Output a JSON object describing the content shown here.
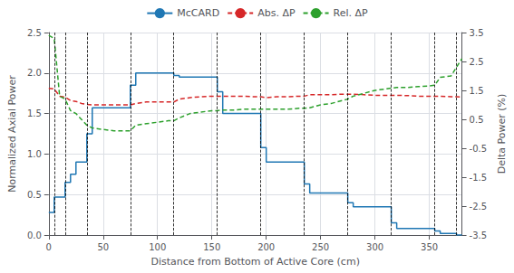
{
  "chart_data": {
    "type": "line",
    "xlabel": "Distance from Bottom of Active Core (cm)",
    "ylabel": "Normalized Axial Power",
    "y2label": "Delta Power (%)",
    "xlim": [
      0,
      380
    ],
    "xticks": [
      0,
      50,
      100,
      150,
      200,
      250,
      300,
      350
    ],
    "ylim": [
      0.0,
      2.5
    ],
    "yticks": [
      {
        "value": 0.0,
        "label": "0.0"
      },
      0.5,
      {
        "value": 1.0,
        "label": "1.0"
      },
      1.5,
      {
        "value": 2.0,
        "label": "2.0"
      },
      2.5
    ],
    "y2lim": [
      -3.5,
      3.5
    ],
    "y2ticks": [
      -3.5,
      -2.5,
      -1.5,
      -0.5,
      0.5,
      1.5,
      2.5,
      3.5
    ],
    "grid": true,
    "legend": "top",
    "vlines": [
      5,
      15,
      35,
      75,
      115,
      155,
      195,
      235,
      275,
      315,
      355,
      375
    ],
    "series": [
      {
        "name": "McCARD",
        "color": "#1f77b4",
        "line_style": "solid",
        "axis": "y",
        "x": [
          0,
          5,
          5,
          15,
          15,
          20,
          20,
          25,
          25,
          35,
          35,
          40,
          40,
          75,
          75,
          80,
          80,
          115,
          115,
          120,
          120,
          155,
          155,
          160,
          160,
          195,
          195,
          200,
          200,
          235,
          235,
          240,
          240,
          275,
          275,
          280,
          280,
          315,
          315,
          320,
          320,
          355,
          355,
          360,
          360,
          375,
          375,
          380
        ],
        "values": [
          0.28,
          0.28,
          0.47,
          0.47,
          0.65,
          0.65,
          0.75,
          0.75,
          0.9,
          0.9,
          1.25,
          1.25,
          1.57,
          1.57,
          1.85,
          1.85,
          2.0,
          2.0,
          1.97,
          1.97,
          1.95,
          1.95,
          1.77,
          1.77,
          1.5,
          1.5,
          1.08,
          1.08,
          0.9,
          0.9,
          0.63,
          0.63,
          0.52,
          0.52,
          0.4,
          0.4,
          0.35,
          0.35,
          0.15,
          0.15,
          0.08,
          0.08,
          0.05,
          0.05,
          0.02,
          0.02,
          0.0,
          0.0
        ]
      },
      {
        "name": "Abs. ΔP",
        "color": "#d62728",
        "line_style": "dashed",
        "axis": "y2",
        "x": [
          0,
          5,
          10,
          15,
          20,
          25,
          30,
          35,
          40,
          50,
          60,
          70,
          75,
          80,
          90,
          100,
          110,
          115,
          120,
          130,
          140,
          150,
          155,
          160,
          170,
          180,
          190,
          195,
          200,
          210,
          220,
          230,
          235,
          240,
          250,
          260,
          270,
          275,
          280,
          290,
          300,
          310,
          315,
          320,
          330,
          340,
          350,
          355,
          360,
          370,
          375,
          380
        ],
        "values": [
          1.57,
          1.55,
          1.3,
          1.27,
          1.15,
          1.12,
          1.05,
          1.02,
          1.0,
          1.0,
          1.0,
          1.0,
          1.0,
          1.05,
          1.1,
          1.1,
          1.1,
          1.1,
          1.2,
          1.25,
          1.28,
          1.3,
          1.3,
          1.3,
          1.3,
          1.3,
          1.28,
          1.28,
          1.25,
          1.28,
          1.28,
          1.3,
          1.3,
          1.35,
          1.35,
          1.35,
          1.37,
          1.37,
          1.37,
          1.35,
          1.33,
          1.33,
          1.33,
          1.33,
          1.32,
          1.3,
          1.3,
          1.3,
          1.3,
          1.28,
          1.28,
          1.27
        ]
      },
      {
        "name": "Rel. ΔP",
        "color": "#2ca02c",
        "line_style": "dashed",
        "axis": "y2",
        "x": [
          0,
          5,
          10,
          15,
          20,
          25,
          30,
          35,
          40,
          50,
          60,
          70,
          75,
          80,
          90,
          100,
          110,
          115,
          120,
          130,
          140,
          150,
          155,
          160,
          170,
          180,
          190,
          195,
          200,
          210,
          220,
          230,
          235,
          240,
          250,
          260,
          270,
          275,
          280,
          290,
          300,
          310,
          315,
          320,
          330,
          340,
          350,
          355,
          360,
          370,
          375,
          380
        ],
        "values": [
          3.4,
          3.3,
          1.3,
          1.2,
          0.8,
          0.7,
          0.5,
          0.3,
          0.2,
          0.15,
          0.1,
          0.1,
          0.1,
          0.3,
          0.35,
          0.4,
          0.45,
          0.45,
          0.55,
          0.7,
          0.75,
          0.8,
          0.8,
          0.82,
          0.82,
          0.85,
          0.85,
          0.85,
          0.85,
          0.85,
          0.85,
          0.88,
          0.88,
          0.9,
          1.0,
          1.05,
          1.15,
          1.2,
          1.3,
          1.4,
          1.5,
          1.55,
          1.58,
          1.6,
          1.6,
          1.63,
          1.65,
          1.68,
          1.95,
          2.0,
          2.3,
          2.6
        ]
      }
    ]
  }
}
